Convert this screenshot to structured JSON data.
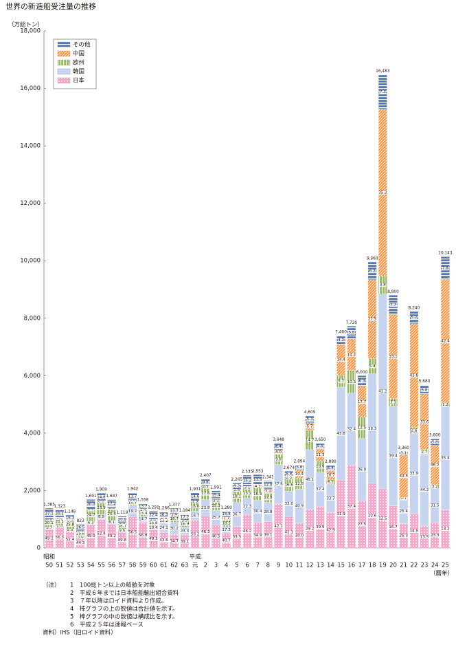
{
  "chart_data": {
    "type": "stacked_bar",
    "title": "世界の新造船受注量の推移",
    "y_unit": "（万総トン）",
    "era_labels": [
      {
        "index": 0,
        "label": "昭和"
      },
      {
        "index": 14,
        "label": "平成"
      }
    ],
    "x_unit": "（暦年）",
    "categories": [
      "50",
      "51",
      "52",
      "53",
      "54",
      "55",
      "56",
      "57",
      "58",
      "59",
      "60",
      "61",
      "62",
      "63",
      "元",
      "2",
      "3",
      "4",
      "5",
      "6",
      "7",
      "8",
      "9",
      "10",
      "11",
      "12",
      "13",
      "14",
      "15",
      "16",
      "17",
      "18",
      "19",
      "20",
      "21",
      "22",
      "23",
      "24",
      "25"
    ],
    "totals": {
      "values": [
        1385,
        1323,
        1148,
        823,
        1691,
        1909,
        1687,
        1119,
        1942,
        1558,
        1291,
        1266,
        1377,
        1184,
        1931,
        2407,
        1991,
        1280,
        2265,
        2535,
        2553,
        2341,
        3648,
        2674,
        2894,
        4609,
        3650,
        2880,
        7400,
        7720,
        6000,
        9960,
        16483,
        8800,
        3360,
        8240,
        5680,
        3800,
        10143
      ],
      "value_labels": [
        "1,385",
        "1,323",
        "1,148",
        "823",
        "1,691",
        "1,909",
        "1,687",
        "1,119",
        "1,942",
        "1,558",
        "1,291",
        "1,266",
        "1,377",
        "1,184",
        "1,931",
        "2,407",
        "1,991",
        "1,280",
        "2,265",
        "2,535",
        "2,553",
        "2,341",
        "3,648",
        "2,674",
        "2,894",
        "4,609",
        "3,650",
        "2,880",
        "7,400",
        "7,720",
        "6,000",
        "9,960",
        "16,483",
        "8,800",
        "3,360",
        "8,240",
        "5,680",
        "3,800",
        "10,143"
      ]
    },
    "series": [
      {
        "name": "日本",
        "color": "#f3a6ca",
        "pattern": "dots",
        "values": [
          49.1,
          56.3,
          52.4,
          44.3,
          49.0,
          52.4,
          49.2,
          49.8,
          56.5,
          56.8,
          49.3,
          43.6,
          34.7,
          39.1,
          50.2,
          46.3,
          40.5,
          40.7,
          33.3,
          46.2,
          34.9,
          39.1,
          42.1,
          41.1,
          30.0,
          29.2,
          39.9,
          42.9,
          31.9,
          37.4,
          27.5,
          22.6,
          12.5,
          16.7,
          25.3,
          14.5,
          13.5,
          23.3,
          13.2
        ],
        "value_labels": [
          "49.1",
          "56.3",
          "52.4",
          "44.3",
          "49.0",
          "52.4",
          "49.2",
          "49.8",
          "56.5",
          "56.8",
          "49.3",
          "43.6",
          "34.7",
          "39.1",
          "50.2",
          "46.3",
          "40.5",
          "40.7",
          "33.3",
          "46.2",
          "34.9",
          "39.1",
          "42.1",
          "41.1",
          "30.0",
          "29.2",
          "39.9",
          "42.9",
          "31.9",
          "37.4",
          "27.5",
          "22.6",
          "12.5",
          "16.7",
          "25.3",
          "14.5",
          "13.5",
          "23.3",
          "13.2"
        ]
      },
      {
        "name": "韓国",
        "color": "#c7d4ef",
        "pattern": "none",
        "values": [
          3.7,
          2.6,
          5.5,
          3.6,
          6.3,
          8.9,
          8.1,
          9.6,
          19.2,
          14.7,
          10.4,
          24.1,
          30.2,
          23.3,
          16.7,
          23.8,
          25.7,
          17.3,
          36.7,
          22.3,
          30.4,
          28.8,
          37.6,
          33.0,
          40.9,
          45.1,
          32.4,
          33.7,
          43.8,
          32.4,
          36.0,
          38.3,
          41.2,
          39.4,
          25.4,
          33.9,
          44.2,
          31.5,
          35.4
        ],
        "value_labels": [
          "3.7",
          "2.6",
          "5.5",
          "3.6",
          "6.3",
          "8.9",
          "8.1",
          "9.6",
          "19.2",
          "14.7",
          "10.4",
          "24.1",
          "30.2",
          "23.3",
          "16.7",
          "23.8",
          "25.7",
          "17.3",
          "36.7",
          "22.3",
          "30.4",
          "28.8",
          "37.6",
          "33.0",
          "40.9",
          "45.1",
          "32.4",
          "33.7",
          "43.8",
          "32.4",
          "36.0",
          "38.3",
          "41.2",
          "39.4",
          "25.4",
          "33.9",
          "44.2",
          "31.5",
          "35.4"
        ]
      },
      {
        "name": "欧州",
        "color": "#8fc241",
        "pattern": "vstripes",
        "values": [
          20.1,
          21.1,
          25.8,
          25.6,
          24.7,
          23.9,
          25.4,
          18.7,
          10.7,
          13.4,
          15.8,
          13.2,
          18.7,
          16.9,
          16.6,
          17.6,
          15.3,
          18.5,
          18.1,
          13.2,
          16.9,
          13.0,
          9.8,
          16.6,
          12.8,
          14.7,
          10.9,
          6.2,
          5.7,
          10.3,
          12.5,
          5.4,
          3.8,
          3.1,
          1.7,
          2.6,
          2.7,
          3.2,
          1.2
        ],
        "value_labels": [
          "20.1",
          "21.1",
          "25.8",
          "25.6",
          "24.7",
          "23.9",
          "25.4",
          "18.7",
          "10.7",
          "13.4",
          "15.8",
          "13.2",
          "18.7",
          "16.9",
          "16.6",
          "17.6",
          "15.3",
          "18.5",
          "18.1",
          "13.2",
          "16.9",
          "13.0",
          "9.8",
          "16.6",
          "12.8",
          "14.7",
          "10.9",
          "6.2",
          "5.7",
          "10.3",
          "12.5",
          "5.4",
          "3.8",
          "3.1",
          "1.7",
          "2.6",
          "2.7",
          "3.2",
          "1.2"
        ]
      },
      {
        "name": "中国",
        "color": "#f0944a",
        "pattern": "diagonal",
        "values": [
          0.0,
          0.0,
          0.0,
          0.0,
          0.0,
          0.0,
          0.0,
          0.0,
          0.0,
          1.4,
          2.2,
          2.8,
          3.4,
          3.5,
          1.9,
          2.5,
          3.1,
          7.7,
          2.6,
          3.1,
          4.3,
          7.1,
          4.0,
          2.5,
          10.4,
          5.7,
          11.3,
          10.7,
          14.4,
          14.2,
          17.7,
          27.5,
          35.2,
          33.1,
          44.5,
          43.8,
          33.6,
          36.2,
          42.4
        ],
        "value_labels": [
          "0.0",
          "0.0",
          "0.0",
          "0.0",
          "0.0",
          "0.0",
          "0.0",
          "0.0",
          "0.0",
          "1.4",
          "2.2",
          "2.8",
          "3.4",
          "3.5",
          "1.9",
          "2.5",
          "3.1",
          "7.7",
          "2.6",
          "3.1",
          "4.3",
          "7.1",
          "4.0",
          "2.5",
          "10.4",
          "5.7",
          "11.3",
          "10.7",
          "14.4",
          "14.2",
          "17.7",
          "27.5",
          "35.2",
          "33.1",
          "44.5",
          "43.8",
          "33.6",
          "36.2",
          "42.4"
        ]
      },
      {
        "name": "その他",
        "color": "#5277b9",
        "pattern": "hstripes",
        "values": [
          27.1,
          20.1,
          16.3,
          26.5,
          20.0,
          14.8,
          17.2,
          20.9,
          11.7,
          13.7,
          22.4,
          16.3,
          13.7,
          17.2,
          14.6,
          9.8,
          15.4,
          15.8,
          9.2,
          15.2,
          13.5,
          12.0,
          6.4,
          6.8,
          5.8,
          5.3,
          5.5,
          6.4,
          4.2,
          5.8,
          6.3,
          6.2,
          7.3,
          7.7,
          3.1,
          5.2,
          5.8,
          5.8,
          7.8
        ],
        "value_labels": [
          "27.1",
          "20.1",
          "16.3",
          "26.5",
          "20.0",
          "14.8",
          "17.2",
          "20.9",
          "11.7",
          "13.7",
          "22.4",
          "16.3",
          "13.7",
          "17.2",
          "14.6",
          "9.8",
          "15.4",
          "15.8",
          "9.2",
          "15.2",
          "13.5",
          "12.0",
          "6.4",
          "6.8",
          "5.8",
          "5.3",
          "5.5",
          "6.4",
          "4.2",
          "5.8",
          "6.3",
          "6.2",
          "7.3",
          "7.7",
          "3.1",
          "5.2",
          "5.8",
          "5.8",
          "7.8"
        ]
      }
    ],
    "ylim": [
      0,
      18000
    ],
    "yticks": [
      0,
      {
        "value": 2000,
        "label": "2,000"
      },
      {
        "value": 4000,
        "label": "4,000"
      },
      {
        "value": 6000,
        "label": "6,000"
      },
      {
        "value": 8000,
        "label": "8,000"
      },
      {
        "value": 10000,
        "label": "10,000"
      },
      {
        "value": 12000,
        "label": "12,000"
      },
      {
        "value": 14000,
        "label": "14,000"
      },
      {
        "value": 16000,
        "label": "16,000"
      },
      {
        "value": 18000,
        "label": "18,000"
      }
    ],
    "grid": false,
    "legend": "upper left",
    "notes_prefix": "（注）",
    "notes": [
      "1　100総トン以上の船舶を対象",
      "2　平成６年までは日本船舶輸出組合資料",
      "3　７年以降はロイド資料より作成。",
      "4　棒グラフの上の数値は合計値を示す。",
      "5　棒グラフの中の数値は構成比を示す。",
      "6　平成２５年は速報ベース"
    ],
    "source": "資料）IHS（旧ロイド資料）"
  }
}
